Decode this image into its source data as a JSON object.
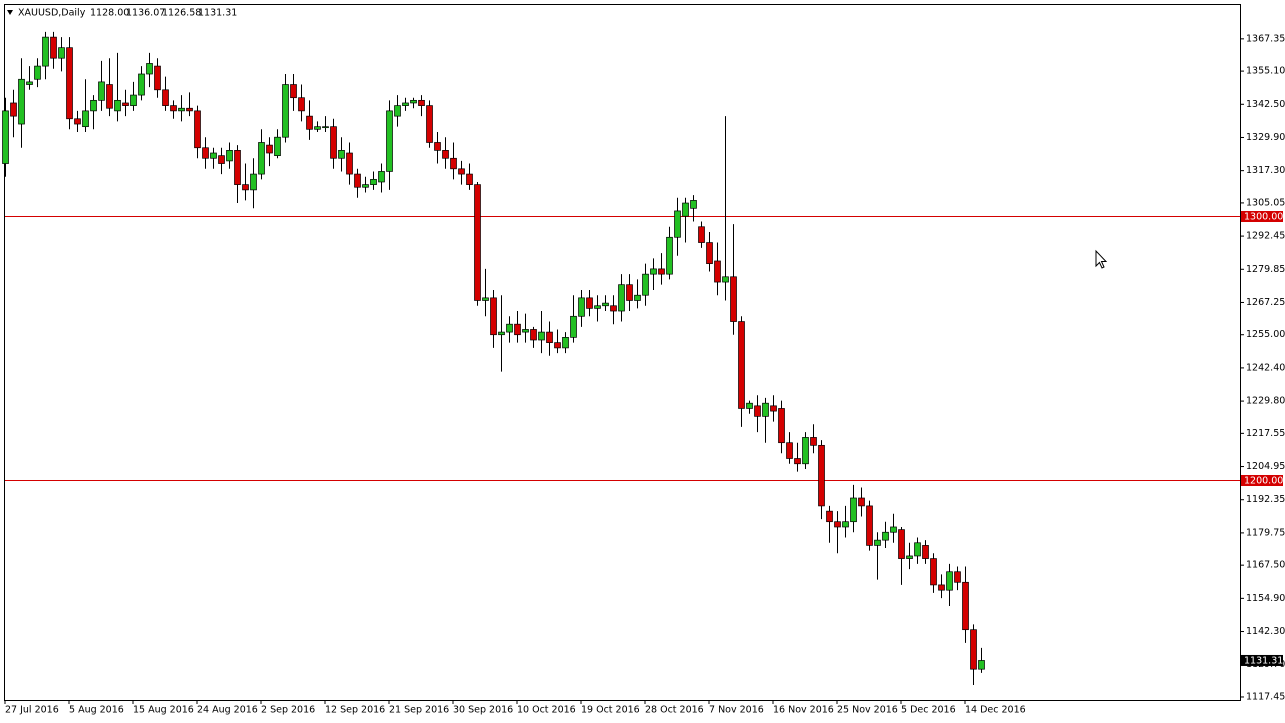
{
  "chart_data": {
    "type": "candlestick",
    "title": "XAUUSD,Daily",
    "last_bar_labels": {
      "open": "1128.00",
      "high": "1136.07",
      "low": "1126.58",
      "close": "1131.31"
    },
    "categories": [
      "27 Jul 2016",
      null,
      null,
      null,
      null,
      null,
      null,
      null,
      "5 Aug 2016",
      null,
      null,
      null,
      null,
      null,
      null,
      null,
      "15 Aug 2016",
      null,
      null,
      null,
      null,
      null,
      null,
      null,
      "24 Aug 2016",
      null,
      null,
      null,
      null,
      null,
      null,
      null,
      "2 Sep 2016",
      null,
      null,
      null,
      null,
      null,
      null,
      null,
      "12 Sep 2016",
      null,
      null,
      null,
      null,
      null,
      null,
      null,
      "21 Sep 2016",
      null,
      null,
      null,
      null,
      null,
      null,
      null,
      "30 Sep 2016",
      null,
      null,
      null,
      null,
      null,
      null,
      null,
      "10 Oct 2016",
      null,
      null,
      null,
      null,
      null,
      null,
      null,
      "19 Oct 2016",
      null,
      null,
      null,
      null,
      null,
      null,
      null,
      "28 Oct 2016",
      null,
      null,
      null,
      null,
      null,
      null,
      null,
      "7 Nov 2016",
      null,
      null,
      null,
      null,
      null,
      null,
      null,
      "16 Nov 2016",
      null,
      null,
      null,
      null,
      null,
      null,
      null,
      "25 Nov 2016",
      null,
      null,
      null,
      null,
      null,
      null,
      null,
      "5 Dec 2016",
      null,
      null,
      null,
      null,
      null,
      null,
      null,
      "14 Dec 2016",
      null,
      null
    ],
    "series": [
      {
        "name": "XAUUSD",
        "up_color": "#22c022",
        "down_color": "#d40000",
        "open": [
          1320,
          1343,
          1335,
          1350,
          1352,
          1357,
          1368,
          1360,
          1364,
          1337,
          1334,
          1340,
          1344,
          1350,
          1340,
          1343,
          1342,
          1346,
          1354,
          1357,
          1348,
          1342,
          1340,
          1341,
          1340,
          1326,
          1322,
          1323,
          1321,
          1325,
          1312,
          1310,
          1316,
          1327,
          1323,
          1330,
          1350,
          1345,
          1338,
          1333,
          1334,
          1334,
          1322,
          1324,
          1316,
          1311,
          1312,
          1313,
          1317,
          1338,
          1342,
          1343,
          1344,
          1342,
          1328,
          1325,
          1322,
          1318,
          1316,
          1312,
          1268,
          1269,
          1255,
          1256,
          1259,
          1256,
          1257,
          1253,
          1256,
          1252,
          1250,
          1254,
          1262,
          1269,
          1265,
          1266,
          1266,
          1264,
          1274,
          1268,
          1270,
          1278,
          1280,
          1278,
          1292,
          1300,
          1303,
          1296,
          1290,
          1283,
          1275,
          1277,
          1260,
          1227,
          1228,
          1224,
          1228,
          1227,
          1214,
          1208,
          1206,
          1216,
          1213,
          1188,
          1184,
          1182,
          1184,
          1193,
          1190,
          1175,
          1177,
          1180,
          1181,
          1170,
          1171,
          1175,
          1170,
          1160,
          1158,
          1165,
          1161,
          1143,
          1128
        ],
        "high": [
          1345,
          1348,
          1360,
          1357,
          1360,
          1370,
          1370,
          1368,
          1368,
          1340,
          1352,
          1346,
          1359,
          1360,
          1362,
          1348,
          1351,
          1357,
          1362,
          1360,
          1353,
          1344,
          1346,
          1347,
          1342,
          1330,
          1326,
          1326,
          1328,
          1327,
          1320,
          1322,
          1333,
          1330,
          1333,
          1354,
          1354,
          1350,
          1344,
          1336,
          1338,
          1337,
          1330,
          1328,
          1318,
          1315,
          1317,
          1320,
          1344,
          1346,
          1345,
          1345,
          1346,
          1344,
          1332,
          1330,
          1328,
          1321,
          1320,
          1313,
          1280,
          1272,
          1270,
          1262,
          1264,
          1263,
          1258,
          1264,
          1260,
          1257,
          1256,
          1270,
          1272,
          1272,
          1270,
          1270,
          1270,
          1278,
          1278,
          1276,
          1282,
          1284,
          1286,
          1296,
          1307,
          1307,
          1308,
          1298,
          1294,
          1290,
          1338,
          1297,
          1262,
          1230,
          1232,
          1231,
          1232,
          1230,
          1218,
          1214,
          1218,
          1221,
          1215,
          1190,
          1188,
          1190,
          1198,
          1197,
          1192,
          1180,
          1184,
          1187,
          1182,
          1176,
          1178,
          1177,
          1172,
          1164,
          1168,
          1167,
          1167,
          1145,
          1136.07
        ],
        "low": [
          1315,
          1330,
          1326,
          1348,
          1349,
          1352,
          1356,
          1355,
          1333,
          1332,
          1332,
          1333,
          1340,
          1338,
          1336,
          1338,
          1340,
          1344,
          1349,
          1345,
          1340,
          1337,
          1336,
          1338,
          1322,
          1318,
          1318,
          1316,
          1318,
          1305,
          1306,
          1303,
          1314,
          1319,
          1322,
          1328,
          1340,
          1336,
          1329,
          1332,
          1332,
          1318,
          1317,
          1312,
          1307,
          1309,
          1310,
          1309,
          1310,
          1334,
          1340,
          1341,
          1338,
          1326,
          1320,
          1318,
          1314,
          1312,
          1310,
          1266,
          1262,
          1250,
          1241,
          1252,
          1252,
          1252,
          1250,
          1248,
          1247,
          1248,
          1248,
          1252,
          1258,
          1262,
          1260,
          1264,
          1259,
          1260,
          1264,
          1265,
          1266,
          1272,
          1274,
          1276,
          1285,
          1290,
          1298,
          1288,
          1279,
          1270,
          1268,
          1255,
          1220,
          1225,
          1218,
          1214,
          1222,
          1210,
          1206,
          1203,
          1204,
          1210,
          1185,
          1176,
          1172,
          1178,
          1180,
          1186,
          1173,
          1162,
          1174,
          1176,
          1160,
          1166,
          1168,
          1168,
          1157,
          1155,
          1152,
          1158,
          1138,
          1122,
          1126.58
        ],
        "close": [
          1340,
          1338,
          1352,
          1351,
          1357,
          1368,
          1360,
          1364,
          1337,
          1335,
          1340,
          1344,
          1351,
          1341,
          1344,
          1342,
          1346,
          1354,
          1358,
          1348,
          1342,
          1340,
          1341,
          1340,
          1326,
          1322,
          1324,
          1320,
          1325,
          1312,
          1310,
          1316,
          1328,
          1324,
          1330,
          1350,
          1345,
          1340,
          1333,
          1334,
          1334,
          1322,
          1325,
          1316,
          1311,
          1312,
          1314,
          1317,
          1340,
          1342,
          1343,
          1344,
          1342,
          1328,
          1325,
          1322,
          1318,
          1316,
          1312,
          1268,
          1269,
          1255,
          1256,
          1259,
          1255,
          1257,
          1253,
          1256,
          1252,
          1250,
          1254,
          1262,
          1269,
          1265,
          1266,
          1267,
          1264,
          1274,
          1268,
          1270,
          1278,
          1280,
          1278,
          1292,
          1302,
          1305,
          1306,
          1290,
          1282,
          1275,
          1277,
          1260,
          1227,
          1229,
          1224,
          1229,
          1226,
          1214,
          1208,
          1206,
          1216,
          1213,
          1190,
          1184,
          1182,
          1184,
          1193,
          1190,
          1175,
          1177,
          1180,
          1182,
          1170,
          1171,
          1176,
          1170,
          1160,
          1158,
          1165,
          1161,
          1143,
          1128,
          1131.31
        ]
      }
    ],
    "hlines": [
      {
        "value": 1300,
        "label": "1300.00",
        "color": "#d40000"
      },
      {
        "value": 1200,
        "label": "1200.00",
        "color": "#d40000"
      }
    ],
    "ylim": [
      1116.3,
      1380.2
    ],
    "yticks": [
      1367.35,
      {
        "value": 1355.1,
        "label": "1355.10"
      },
      {
        "value": 1342.5,
        "label": "1342.50"
      },
      {
        "value": 1329.9,
        "label": "1329.90"
      },
      {
        "value": 1317.3,
        "label": "1317.30"
      },
      1305.05,
      1292.45,
      1279.85,
      1267.25,
      {
        "value": 1255,
        "label": "1255.00"
      },
      {
        "value": 1242.4,
        "label": "1242.40"
      },
      {
        "value": 1229.8,
        "label": "1229.80"
      },
      1217.55,
      1204.95,
      1192.35,
      1179.75,
      {
        "value": 1167.5,
        "label": "1167.50"
      },
      {
        "value": 1154.9,
        "label": "1154.90"
      },
      {
        "value": 1142.3,
        "label": "1142.30"
      },
      {
        "value": 1129.7,
        "label": "1129.70"
      },
      1117.45
    ],
    "grid": false
  }
}
